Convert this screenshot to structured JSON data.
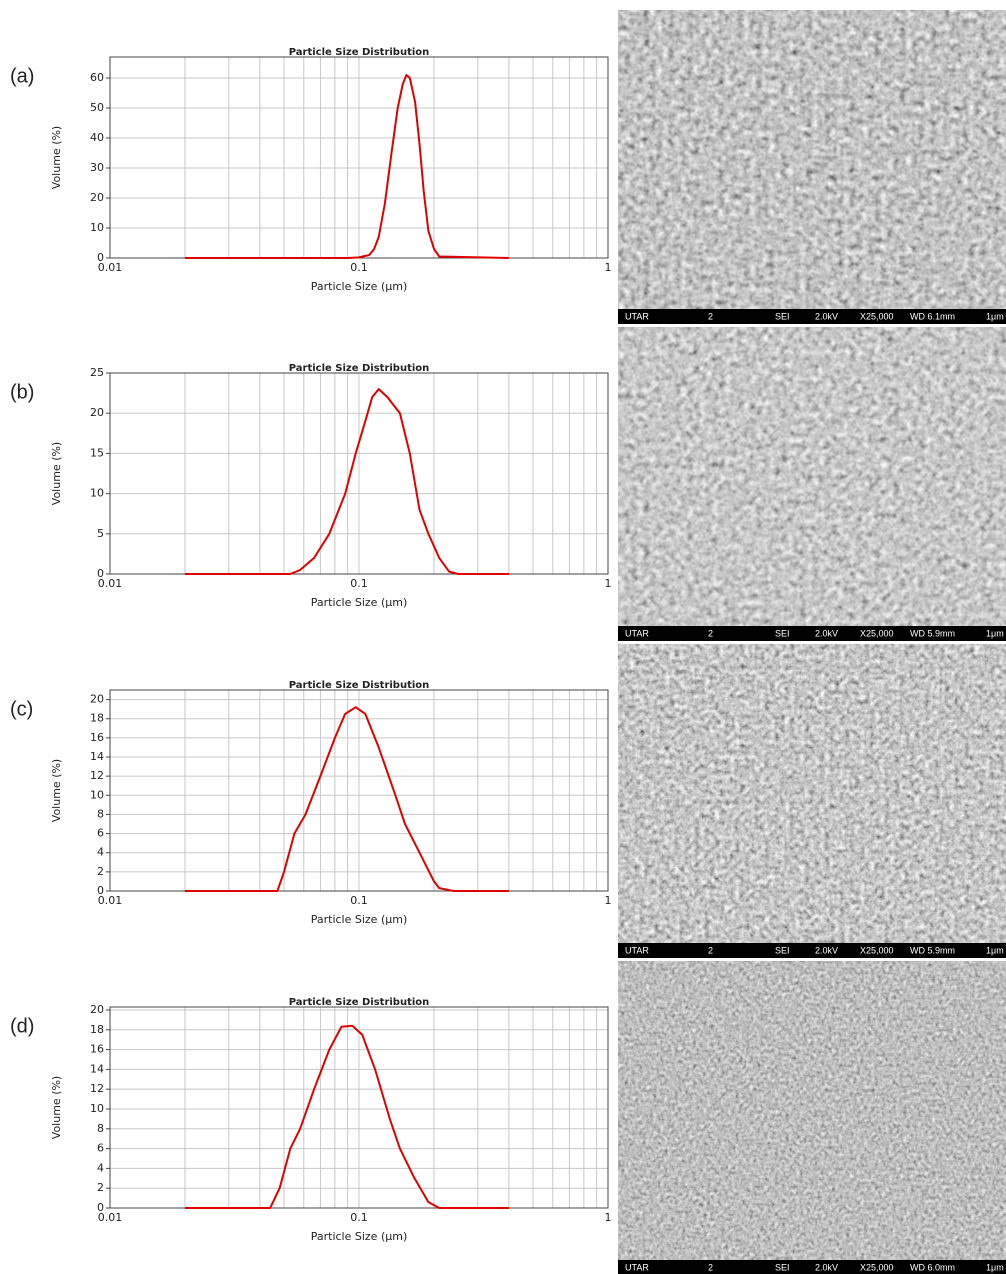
{
  "chart_data": [
    {
      "type": "line",
      "panel_label": "(a)",
      "title": "Particle Size Distribution",
      "xlabel": "Particle Size (μm)",
      "ylabel": "Volume (%)",
      "x_scale": "log",
      "xlim": [
        0.01,
        1
      ],
      "xticks": [
        0.01,
        0.1,
        1
      ],
      "x_minor_grid": [
        0.02,
        0.03,
        0.04,
        0.05,
        0.06,
        0.07,
        0.08,
        0.09,
        0.2,
        0.3,
        0.4,
        0.5,
        0.6,
        0.7,
        0.8,
        0.9
      ],
      "ylim": [
        0,
        67
      ],
      "yticks": [
        0,
        10,
        20,
        30,
        40,
        50,
        60
      ],
      "grid": true,
      "color": "#e00000",
      "x": [
        0.02,
        0.09,
        0.1,
        0.11,
        0.115,
        0.12,
        0.127,
        0.135,
        0.143,
        0.15,
        0.155,
        0.16,
        0.168,
        0.175,
        0.182,
        0.19,
        0.2,
        0.21,
        0.4
      ],
      "values": [
        0,
        0,
        0.2,
        1,
        3,
        7,
        18,
        35,
        50,
        58,
        61,
        60,
        52,
        38,
        22,
        9,
        3,
        0.5,
        0
      ]
    },
    {
      "type": "line",
      "panel_label": "(b)",
      "title": "Particle Size Distribution",
      "xlabel": "Particle Size (μm)",
      "ylabel": "Volume (%)",
      "x_scale": "log",
      "xlim": [
        0.01,
        1
      ],
      "xticks": [
        0.01,
        0.1,
        1
      ],
      "x_minor_grid": [
        0.02,
        0.03,
        0.04,
        0.05,
        0.06,
        0.07,
        0.08,
        0.09,
        0.2,
        0.3,
        0.4,
        0.5,
        0.6,
        0.7,
        0.8,
        0.9
      ],
      "ylim": [
        0,
        25
      ],
      "yticks": [
        0,
        5,
        10,
        15,
        20,
        25
      ],
      "grid": true,
      "color": "#e00000",
      "x": [
        0.02,
        0.053,
        0.058,
        0.066,
        0.076,
        0.088,
        0.097,
        0.106,
        0.113,
        0.12,
        0.13,
        0.146,
        0.16,
        0.175,
        0.19,
        0.21,
        0.23,
        0.25,
        0.4
      ],
      "values": [
        0,
        0,
        0.5,
        2,
        5,
        10,
        15,
        19,
        22,
        23,
        22,
        20,
        15,
        8,
        5,
        2,
        0.3,
        0,
        0
      ]
    },
    {
      "type": "line",
      "panel_label": "(c)",
      "title": "Particle Size Distribution",
      "xlabel": "Particle Size (μm)",
      "ylabel": "Volume (%)",
      "x_scale": "log",
      "xlim": [
        0.01,
        1
      ],
      "xticks": [
        0.01,
        0.1,
        1
      ],
      "x_minor_grid": [
        0.02,
        0.03,
        0.04,
        0.05,
        0.06,
        0.07,
        0.08,
        0.09,
        0.2,
        0.3,
        0.4,
        0.5,
        0.6,
        0.7,
        0.8,
        0.9
      ],
      "ylim": [
        0,
        21
      ],
      "yticks": [
        0,
        2,
        4,
        6,
        8,
        10,
        12,
        14,
        16,
        18,
        20
      ],
      "grid": true,
      "color": "#e00000",
      "x": [
        0.02,
        0.047,
        0.05,
        0.055,
        0.061,
        0.07,
        0.08,
        0.088,
        0.097,
        0.106,
        0.12,
        0.14,
        0.153,
        0.175,
        0.2,
        0.21,
        0.24,
        0.4
      ],
      "values": [
        0,
        0,
        2,
        6,
        8,
        12,
        16,
        18.5,
        19.2,
        18.5,
        15,
        10,
        7,
        4,
        1,
        0.3,
        0,
        0
      ]
    },
    {
      "type": "line",
      "panel_label": "(d)",
      "title": "Particle Size Distribution",
      "xlabel": "Particle Size (μm)",
      "ylabel": "Volume (%)",
      "x_scale": "log",
      "xlim": [
        0.01,
        1
      ],
      "xticks": [
        0.01,
        0.1,
        1
      ],
      "x_minor_grid": [
        0.02,
        0.03,
        0.04,
        0.05,
        0.06,
        0.07,
        0.08,
        0.09,
        0.2,
        0.3,
        0.4,
        0.5,
        0.6,
        0.7,
        0.8,
        0.9
      ],
      "ylim": [
        0,
        20.3
      ],
      "yticks": [
        0,
        2,
        4,
        6,
        8,
        10,
        12,
        14,
        16,
        18,
        20
      ],
      "grid": true,
      "color": "#e00000",
      "x": [
        0.02,
        0.044,
        0.048,
        0.053,
        0.058,
        0.066,
        0.076,
        0.085,
        0.094,
        0.103,
        0.116,
        0.133,
        0.146,
        0.167,
        0.19,
        0.21,
        0.4
      ],
      "values": [
        0,
        0,
        2,
        6,
        8,
        12,
        16,
        18.3,
        18.4,
        17.5,
        14,
        9,
        6,
        3,
        0.6,
        0,
        0
      ]
    }
  ],
  "micrographs": [
    {
      "info": [
        "UTAR",
        "2",
        "SEI",
        "2.0kV",
        "X25,000",
        "WD 6.1mm",
        "1μm"
      ]
    },
    {
      "info": [
        "UTAR",
        "2",
        "SEI",
        "2.0kV",
        "X25,000",
        "WD 5.9mm",
        "1μm"
      ]
    },
    {
      "info": [
        "UTAR",
        "2",
        "SEI",
        "2.0kV",
        "X25,000",
        "WD 5.9mm",
        "1μm"
      ]
    },
    {
      "info": [
        "UTAR",
        "2",
        "SEI",
        "2.0kV",
        "X25,000",
        "WD 6.0mm",
        "1μm"
      ]
    }
  ]
}
